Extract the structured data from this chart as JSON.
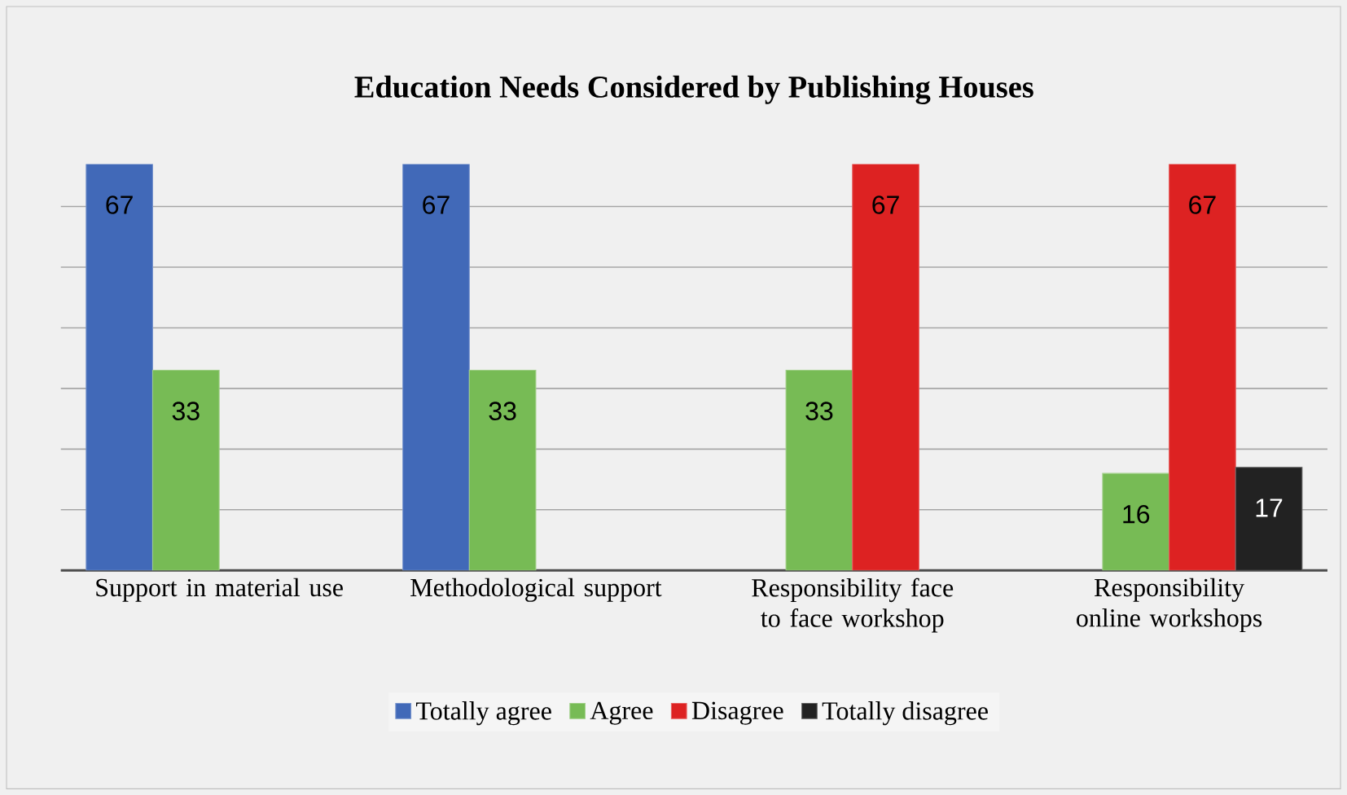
{
  "chart_data": {
    "type": "bar",
    "title": "Education Needs Considered by Publishing Houses",
    "categories": [
      "Support in material use",
      "Methodological support",
      "Responsibility  face to face workshop",
      "Responsibility online workshops"
    ],
    "series": [
      {
        "name": "Totally agree",
        "color": "#4169b8",
        "values": [
          67,
          67,
          null,
          null
        ]
      },
      {
        "name": "Agree",
        "color": "#77bb55",
        "values": [
          33,
          33,
          33,
          16
        ]
      },
      {
        "name": "Disagree",
        "color": "#dd2222",
        "values": [
          null,
          null,
          67,
          67
        ]
      },
      {
        "name": "Totally disagree",
        "color": "#222222",
        "values": [
          null,
          null,
          null,
          17
        ]
      }
    ],
    "tick_labels": "x",
    "grid": "y",
    "legend": "bottom",
    "data_labels": true
  }
}
